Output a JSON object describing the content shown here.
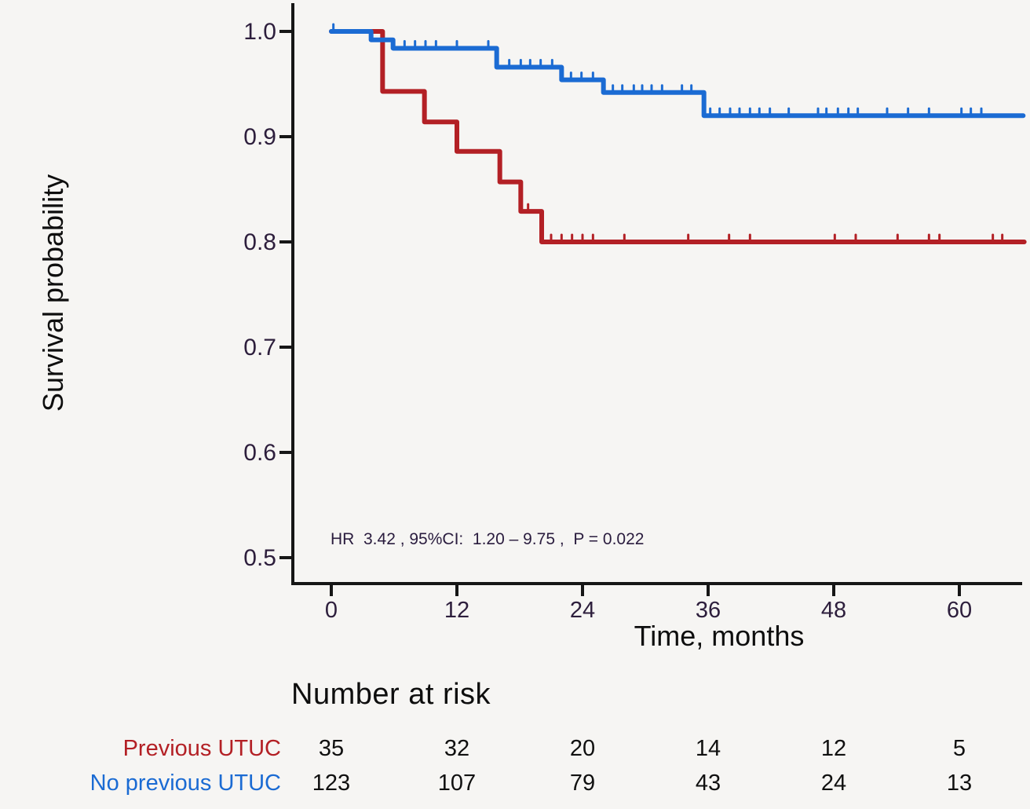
{
  "colors": {
    "background": "#f6f5f3",
    "axis": "#161616",
    "tick_label": "#2d1e3c",
    "annotation": "#2a1c3e",
    "plain_text": "#0e0e0e",
    "red_series": "#B32025",
    "blue_series": "#1B6BD3"
  },
  "chart_data": {
    "type": "line",
    "subtype": "kaplan-meier-step-survival",
    "title": "",
    "xlabel": "Time, months",
    "ylabel": "Survival probability",
    "xlim": [
      0,
      66.5
    ],
    "ylim": [
      0.48,
      1.02
    ],
    "grid": false,
    "legend_position": "none",
    "x_ticks": [
      0,
      12,
      24,
      36,
      48,
      60
    ],
    "y_tick_labels": [
      "1.0",
      "0.9",
      "0.8",
      "0.7",
      "0.6",
      "0.5"
    ],
    "annotation": "HR  3.42 , 95%CI:  1.20 – 9.75 ,  P = 0.022",
    "series": [
      {
        "name": "Previous UTUC",
        "color": "#B32025",
        "steps": [
          [
            0,
            1.0
          ],
          [
            4.9,
            0.943
          ],
          [
            8.9,
            0.914
          ],
          [
            12.0,
            0.886
          ],
          [
            16.1,
            0.857
          ],
          [
            18.1,
            0.829
          ],
          [
            20.1,
            0.8
          ]
        ],
        "end_x": 66.2,
        "censor_x": [
          18.8,
          21.0,
          22.0,
          23.0,
          24.0,
          25.0,
          28.0,
          34.1,
          38.0,
          40.0,
          48.1,
          50.1,
          54.1,
          57.1,
          58.1,
          63.2,
          64.1
        ]
      },
      {
        "name": "No previous UTUC",
        "color": "#1B6BD3",
        "steps": [
          [
            0,
            1.0
          ],
          [
            3.8,
            0.992
          ],
          [
            5.9,
            0.984
          ],
          [
            15.8,
            0.966
          ],
          [
            22.0,
            0.954
          ],
          [
            26.0,
            0.942
          ],
          [
            35.6,
            0.92
          ]
        ],
        "end_x": 66.1,
        "censor_x": [
          0.2,
          7.0,
          8.0,
          9.0,
          10.0,
          12.0,
          15.0,
          17.0,
          18.1,
          19.0,
          20.0,
          21.1,
          22.9,
          23.9,
          25.0,
          26.9,
          27.8,
          28.9,
          29.7,
          30.6,
          31.6,
          33.5,
          34.4,
          36.2,
          37.1,
          38.1,
          39.0,
          40.0,
          40.9,
          41.9,
          43.7,
          46.5,
          47.3,
          48.4,
          49.4,
          50.3,
          53.1,
          55.1,
          57.1,
          60.2,
          61.1,
          62.1
        ]
      }
    ]
  },
  "risk_table": {
    "title": "Number at risk",
    "time_points": [
      0,
      12,
      24,
      36,
      48,
      60
    ],
    "rows": [
      {
        "label": "Previous UTUC",
        "color": "#B32025",
        "values": [
          "35",
          "32",
          "20",
          "14",
          "12",
          "5"
        ]
      },
      {
        "label": "No previous UTUC",
        "color": "#1B6BD3",
        "values": [
          "123",
          "107",
          "79",
          "43",
          "24",
          "13"
        ]
      }
    ]
  }
}
